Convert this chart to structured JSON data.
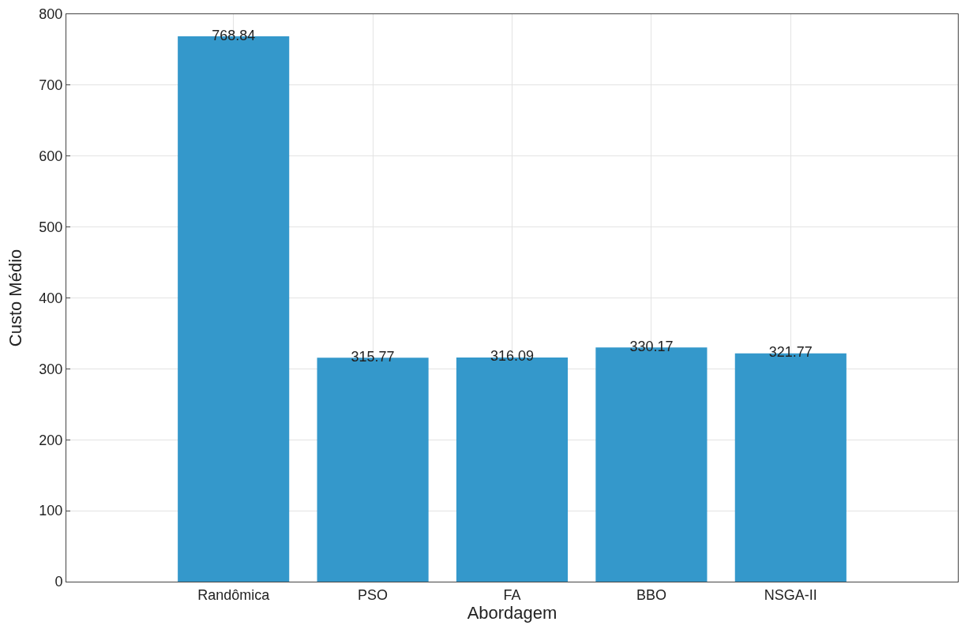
{
  "chart_data": {
    "type": "bar",
    "xlabel": "Abordagem",
    "ylabel": "Custo Médio",
    "categories": [
      "Randômica",
      "PSO",
      "FA",
      "BBO",
      "NSGA-II"
    ],
    "values": [
      768.84,
      315.77,
      316.09,
      330.17,
      321.77
    ],
    "color": "#3498cb",
    "data_labels": true,
    "ylim": [
      0,
      800
    ],
    "yticks": [
      0,
      100,
      200,
      300,
      400,
      500,
      600,
      700,
      800
    ],
    "grid": true
  }
}
